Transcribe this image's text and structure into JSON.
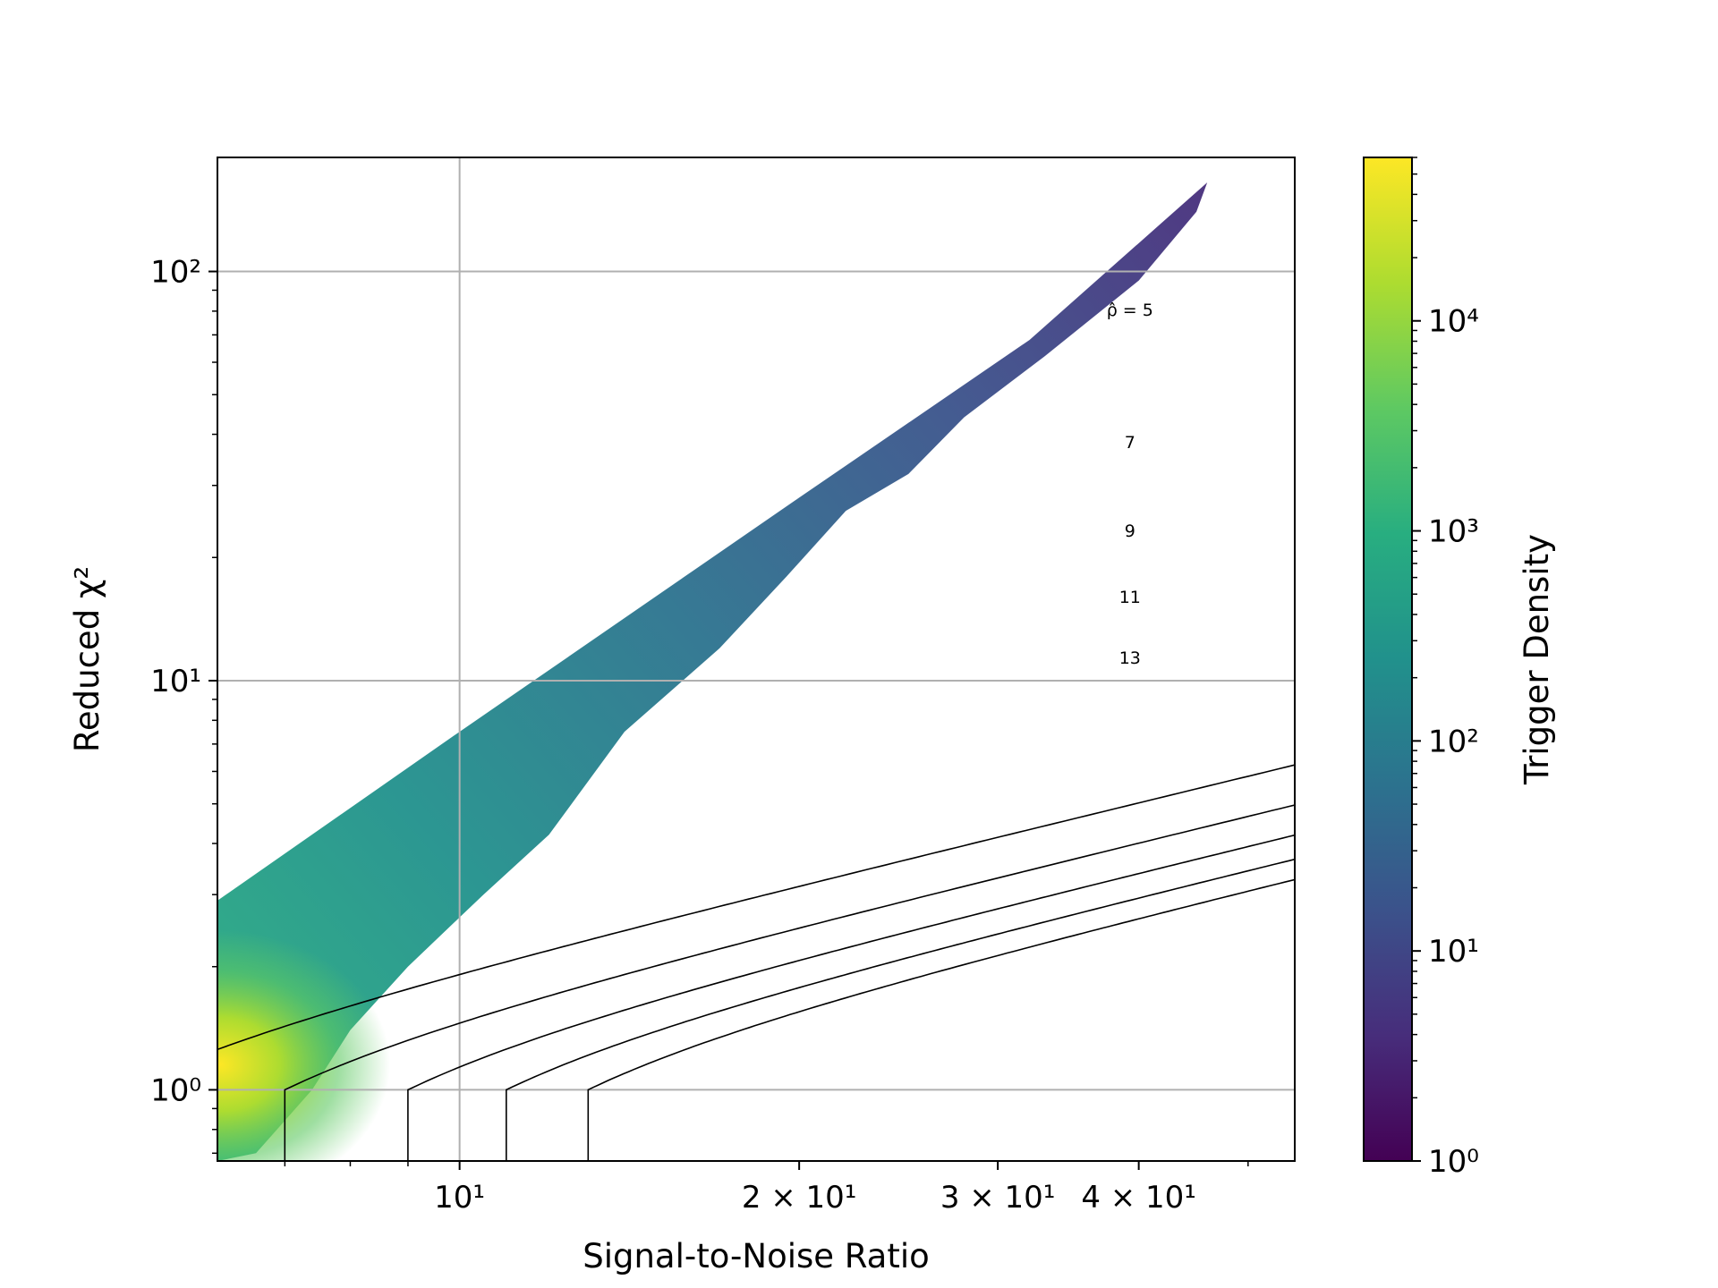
{
  "chart_data": {
    "type": "heatmap",
    "title": "",
    "xlabel": "Signal-to-Noise Ratio",
    "ylabel": "Reduced χ²",
    "xscale": "log",
    "yscale": "log",
    "xlim": [
      6.1,
      55
    ],
    "ylim": [
      0.67,
      190
    ],
    "grid": true,
    "x_ticks": [
      {
        "value": 10,
        "label": "10¹"
      },
      {
        "value": 20,
        "label": "2 × 10¹"
      },
      {
        "value": 30,
        "label": "3 × 10¹"
      },
      {
        "value": 40,
        "label": "4 × 10¹"
      }
    ],
    "y_ticks": [
      {
        "value": 1,
        "label": "10⁰"
      },
      {
        "value": 10,
        "label": "10¹"
      },
      {
        "value": 100,
        "label": "10²"
      }
    ],
    "colorbar": {
      "label": "Trigger Density",
      "scale": "log",
      "range": [
        1,
        60000
      ],
      "colormap": "viridis",
      "ticks": [
        {
          "value": 1,
          "label": "10⁰"
        },
        {
          "value": 10,
          "label": "10¹"
        },
        {
          "value": 100,
          "label": "10²"
        },
        {
          "value": 1000,
          "label": "10³"
        },
        {
          "value": 10000,
          "label": "10⁴"
        }
      ]
    },
    "density_region": {
      "upper_edge": [
        [
          6.1,
          2.9
        ],
        [
          10,
          7.5
        ],
        [
          20,
          28
        ],
        [
          32,
          68
        ],
        [
          46,
          165
        ]
      ],
      "peak": {
        "snr": 6.2,
        "chi2": 1.2,
        "density": 60000
      }
    },
    "contours": {
      "label_prefix": "ρ̂ = ",
      "levels": [
        {
          "value": 5,
          "label": "ρ̂ = 5",
          "label_at": [
            39,
            78
          ]
        },
        {
          "value": 7,
          "label": "7",
          "label_at": [
            39,
            37
          ]
        },
        {
          "value": 9,
          "label": "9",
          "label_at": [
            39,
            22.5
          ]
        },
        {
          "value": 11,
          "label": "11",
          "label_at": [
            39,
            15.5
          ]
        },
        {
          "value": 13,
          "label": "13",
          "label_at": [
            39,
            11
          ]
        }
      ]
    }
  }
}
